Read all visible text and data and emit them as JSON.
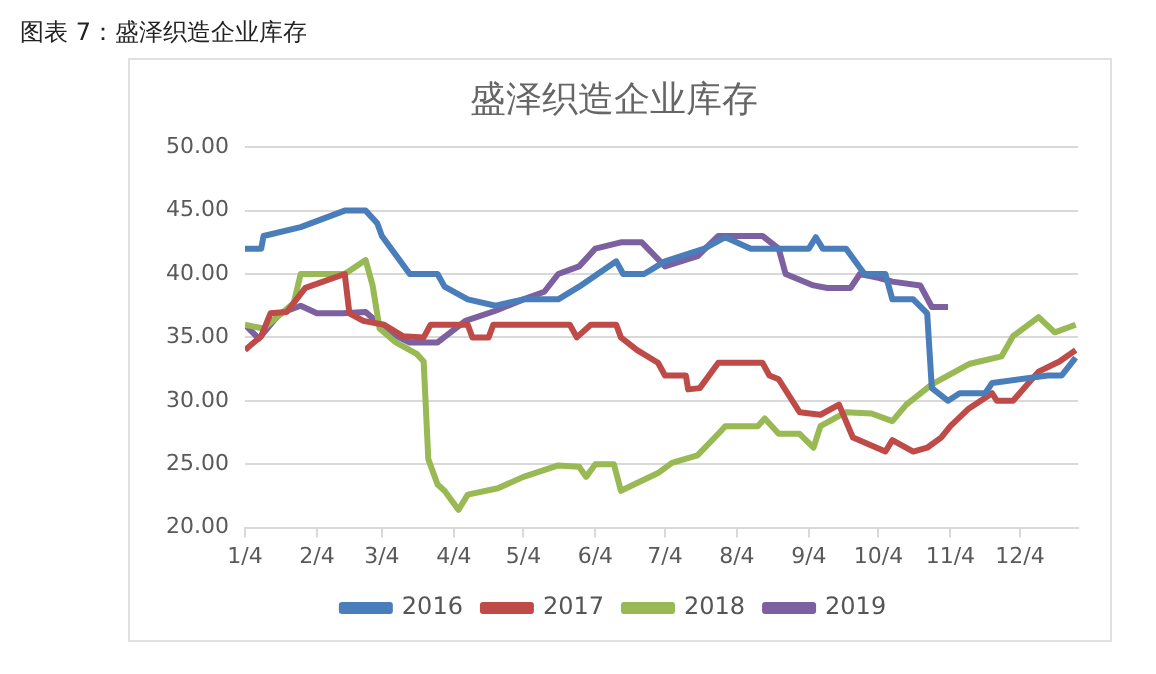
{
  "chart_data": {
    "type": "line",
    "title": "盛泽织造企业库存",
    "annotations": [
      "图表 7：盛泽织造企业库存"
    ],
    "xlim": [
      "--01-04",
      "--12-29"
    ],
    "xticks": [
      {
        "value": "--01-04",
        "label": "1/4"
      },
      {
        "value": "--02-04",
        "label": "2/4"
      },
      {
        "value": "--03-04",
        "label": "3/4"
      },
      {
        "value": "--04-04",
        "label": "4/4"
      },
      {
        "value": "--05-04",
        "label": "5/4"
      },
      {
        "value": "--06-04",
        "label": "6/4"
      },
      {
        "value": "--07-04",
        "label": "7/4"
      },
      {
        "value": "--08-04",
        "label": "8/4"
      },
      {
        "value": "--09-04",
        "label": "9/4"
      },
      {
        "value": "--10-04",
        "label": "10/4"
      },
      {
        "value": "--11-04",
        "label": "11/4"
      },
      {
        "value": "--12-04",
        "label": "12/4"
      }
    ],
    "ylim": [
      20,
      50
    ],
    "yticks": [
      {
        "value": 20,
        "label": "20.00"
      },
      {
        "value": 25,
        "label": "25.00"
      },
      {
        "value": 30,
        "label": "30.00"
      },
      {
        "value": 35,
        "label": "35.00"
      },
      {
        "value": 40,
        "label": "40.00"
      },
      {
        "value": 45,
        "label": "45.00"
      },
      {
        "value": 50,
        "label": "50.00"
      }
    ],
    "grid": "y",
    "legend": "bottom",
    "marker": "none",
    "line_style": "solid",
    "series": [
      {
        "name": "2016",
        "color": "#4a7ebb",
        "x": [
          "--01-04",
          "--01-11",
          "--01-12",
          "--01-28",
          "--02-16",
          "--02-25",
          "--03-02",
          "--03-04",
          "--03-16",
          "--03-28",
          "--03-31",
          "--04-10",
          "--04-22",
          "--05-04",
          "--05-19",
          "--05-28",
          "--06-13",
          "--06-16",
          "--06-25",
          "--07-04",
          "--07-21",
          "--07-30",
          "--08-10",
          "--09-04",
          "--09-07",
          "--09-10",
          "--09-20",
          "--09-28",
          "--10-07",
          "--10-10",
          "--10-19",
          "--10-25",
          "--10-27",
          "--11-03",
          "--11-08",
          "--11-19",
          "--11-22",
          "--12-16",
          "--12-22",
          "--12-28"
        ],
        "values": [
          42,
          42,
          43,
          43.7,
          45,
          45,
          44,
          43,
          40,
          40,
          39,
          38,
          37.5,
          38,
          38,
          39,
          41,
          40,
          40,
          41,
          42,
          42.9,
          42,
          42,
          42.9,
          42,
          42,
          40,
          40,
          38,
          38,
          36.9,
          31,
          30,
          30.6,
          30.6,
          31.4,
          32,
          32,
          33.4
        ]
      },
      {
        "name": "2017",
        "color": "#be4b48",
        "x": [
          "--01-04",
          "--01-11",
          "--01-15",
          "--01-22",
          "--01-30",
          "--02-16",
          "--02-18",
          "--02-24",
          "--03-05",
          "--03-13",
          "--03-22",
          "--03-25",
          "--04-10",
          "--04-12",
          "--04-19",
          "--04-21",
          "--05-24",
          "--05-27",
          "--06-02",
          "--06-13",
          "--06-15",
          "--06-22",
          "--07-01",
          "--07-04",
          "--07-13",
          "--07-14",
          "--07-19",
          "--07-27",
          "--08-15",
          "--08-18",
          "--08-22",
          "--08-31",
          "--09-09",
          "--09-17",
          "--09-23",
          "--10-07",
          "--10-10",
          "--10-19",
          "--10-25",
          "--10-31",
          "--11-04",
          "--11-12",
          "--11-22",
          "--11-24",
          "--12-01",
          "--12-12",
          "--12-21",
          "--12-28"
        ],
        "values": [
          34,
          35.1,
          36.9,
          37,
          38.9,
          40,
          36.9,
          36.3,
          36,
          35.1,
          35,
          36,
          36,
          35,
          35,
          36,
          36,
          35,
          36,
          36,
          35,
          34,
          33,
          32,
          32,
          30.9,
          31,
          33,
          33,
          32,
          31.7,
          29.1,
          28.9,
          29.7,
          27.1,
          26,
          26.9,
          26,
          26.3,
          27.1,
          28,
          29.4,
          30.6,
          30,
          30,
          32.3,
          33.1,
          34
        ]
      },
      {
        "name": "2018",
        "color": "#98b954",
        "x": [
          "--01-04",
          "--01-12",
          "--01-25",
          "--01-28",
          "--02-16",
          "--02-25",
          "--02-28",
          "--03-03",
          "--03-10",
          "--03-19",
          "--03-22",
          "--03-24",
          "--03-28",
          "--03-31",
          "--04-06",
          "--04-10",
          "--04-23",
          "--05-04",
          "--05-19",
          "--05-28",
          "--05-31",
          "--06-04",
          "--06-12",
          "--06-15",
          "--07-01",
          "--07-07",
          "--07-18",
          "--07-27",
          "--07-30",
          "--08-13",
          "--08-16",
          "--08-22",
          "--08-31",
          "--09-06",
          "--09-09",
          "--09-20",
          "--10-01",
          "--10-10",
          "--10-16",
          "--10-27",
          "--11-12",
          "--11-26",
          "--12-01",
          "--12-12",
          "--12-19",
          "--12-28"
        ],
        "values": [
          36,
          35.7,
          37.7,
          40,
          40,
          41.1,
          39.1,
          35.7,
          34.6,
          33.7,
          33.1,
          25.4,
          23.4,
          22.9,
          21.4,
          22.6,
          23.1,
          24,
          24.9,
          24.8,
          24,
          25,
          25,
          22.9,
          24.3,
          25.1,
          25.7,
          27.4,
          28,
          28,
          28.6,
          27.4,
          27.4,
          26.3,
          28,
          29.1,
          29,
          28.4,
          29.7,
          31.3,
          32.9,
          33.5,
          35.1,
          36.6,
          35.4,
          36
        ]
      },
      {
        "name": "2019",
        "color": "#7d60a0",
        "x": [
          "--01-04",
          "--01-10",
          "--01-19",
          "--01-28",
          "--02-04",
          "--02-15",
          "--02-25",
          "--03-07",
          "--03-16",
          "--03-28",
          "--04-09",
          "--04-22",
          "--05-04",
          "--05-13",
          "--05-19",
          "--05-28",
          "--06-04",
          "--06-15",
          "--06-24",
          "--07-04",
          "--07-18",
          "--07-27",
          "--08-15",
          "--08-22",
          "--08-25",
          "--09-06",
          "--09-12",
          "--09-22",
          "--09-26",
          "--10-04",
          "--10-10",
          "--10-22",
          "--10-27",
          "--11-03"
        ],
        "values": [
          36,
          34.9,
          36.9,
          37.5,
          36.9,
          36.9,
          37,
          35.4,
          34.6,
          34.6,
          36.3,
          37.1,
          38,
          38.6,
          40,
          40.6,
          42,
          42.5,
          42.5,
          40.6,
          41.4,
          43,
          43,
          42,
          40,
          39.1,
          38.9,
          38.9,
          40,
          39.7,
          39.4,
          39.1,
          37.4,
          37.4
        ]
      }
    ]
  }
}
